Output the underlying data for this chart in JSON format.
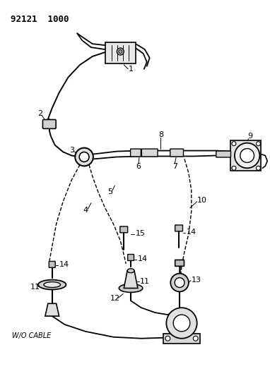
{
  "title": "92121 1000",
  "background_color": "#ffffff",
  "line_color": "#000000",
  "fig_width": 3.82,
  "fig_height": 5.33,
  "dpi": 100
}
